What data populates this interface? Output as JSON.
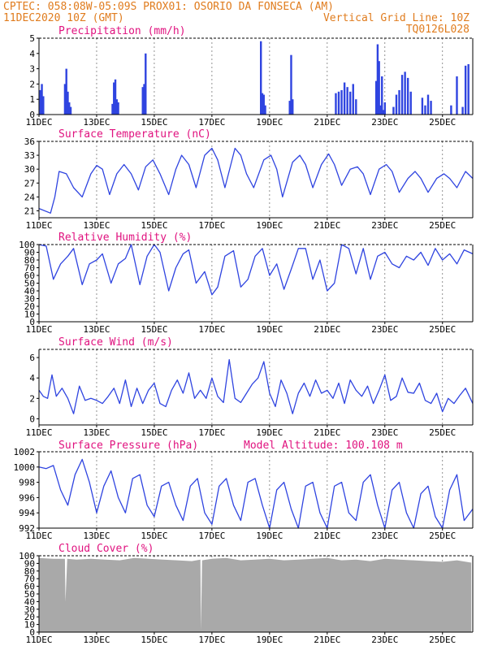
{
  "header": {
    "line1": "CPTEC:  058:08W-05:09S  PROX01: OSORIO DA FONSECA (AM)",
    "line2_left": "11DEC2020 10Z (GMT)",
    "line2_right": "Vertical Grid Line: 10Z",
    "line3_right": "TQ0126L028"
  },
  "x_axis": {
    "labels": [
      "11DEC",
      "13DEC",
      "15DEC",
      "17DEC",
      "19DEC",
      "21DEC",
      "23DEC",
      "25DEC"
    ],
    "start_day": 11,
    "end_day": 26.05
  },
  "colors": {
    "line": "#2f44e0",
    "bar": "#2f44e0",
    "cloud": "#a9a9a9",
    "title": "#e0127f",
    "header": "#e07c1e"
  },
  "chart_data": [
    {
      "type": "bar",
      "title": "Precipitation (mm/h)",
      "ylim": [
        0,
        5
      ],
      "yticks": [
        0,
        1,
        2,
        3,
        4,
        5
      ],
      "x": [
        11.05,
        11.1,
        11.15,
        11.9,
        11.95,
        12.0,
        12.05,
        12.1,
        13.55,
        13.6,
        13.65,
        13.7,
        13.75,
        14.6,
        14.65,
        14.7,
        18.7,
        18.75,
        18.8,
        18.85,
        19.7,
        19.75,
        19.8,
        21.3,
        21.4,
        21.5,
        21.6,
        21.7,
        21.8,
        21.9,
        22.0,
        22.7,
        22.75,
        22.8,
        22.85,
        22.9,
        22.95,
        23.0,
        23.3,
        23.4,
        23.5,
        23.6,
        23.7,
        23.8,
        23.9,
        24.3,
        24.4,
        24.5,
        24.6,
        25.3,
        25.5,
        25.7,
        25.8,
        25.9
      ],
      "values": [
        1.6,
        2.0,
        1.2,
        2.0,
        3.0,
        1.5,
        0.8,
        0.5,
        0.7,
        2.1,
        2.3,
        1.0,
        0.8,
        1.8,
        2.0,
        4.0,
        4.8,
        1.4,
        1.3,
        0.6,
        0.9,
        3.9,
        1.0,
        1.4,
        1.5,
        1.6,
        2.1,
        1.8,
        1.5,
        2.0,
        1.0,
        2.2,
        4.6,
        3.5,
        0.6,
        2.5,
        0.3,
        0.8,
        0.5,
        1.3,
        1.6,
        2.6,
        2.8,
        2.4,
        1.5,
        1.1,
        0.6,
        1.3,
        0.9,
        0.6,
        2.5,
        0.5,
        3.2,
        3.3
      ]
    },
    {
      "type": "line",
      "title": "Surface Temperature (nC)",
      "ylim": [
        19.5,
        36
      ],
      "yticks": [
        21,
        24,
        27,
        30,
        33,
        36
      ],
      "x": [
        11.0,
        11.4,
        11.55,
        11.7,
        11.95,
        12.2,
        12.5,
        12.8,
        13.0,
        13.2,
        13.45,
        13.7,
        13.95,
        14.2,
        14.45,
        14.7,
        14.95,
        15.2,
        15.5,
        15.75,
        15.95,
        16.2,
        16.45,
        16.75,
        17.0,
        17.2,
        17.45,
        17.8,
        18.0,
        18.2,
        18.45,
        18.8,
        19.05,
        19.25,
        19.45,
        19.8,
        20.05,
        20.25,
        20.5,
        20.8,
        21.05,
        21.25,
        21.5,
        21.8,
        22.05,
        22.25,
        22.5,
        22.8,
        23.05,
        23.25,
        23.5,
        23.8,
        24.05,
        24.25,
        24.5,
        24.8,
        25.05,
        25.25,
        25.5,
        25.8,
        26.05
      ],
      "values": [
        21.5,
        20.5,
        24,
        29.5,
        29,
        26,
        24,
        29,
        30.8,
        30,
        24.5,
        29,
        31,
        29,
        25.5,
        30.5,
        32,
        29,
        24.5,
        30,
        33,
        31,
        26,
        33,
        34.5,
        32,
        26,
        34.5,
        33,
        29,
        26,
        32,
        33,
        30,
        24,
        31.5,
        33,
        31,
        26,
        31,
        33.3,
        31,
        26.5,
        30,
        30.5,
        29,
        24.5,
        30,
        31,
        29.5,
        25,
        28,
        29.5,
        28,
        25,
        28,
        29,
        28,
        26,
        29.5,
        28
      ]
    },
    {
      "type": "line",
      "title": "Relative Humidity (%)",
      "ylim": [
        0,
        100
      ],
      "yticks": [
        0,
        10,
        20,
        30,
        40,
        50,
        60,
        70,
        80,
        90,
        100
      ],
      "x": [
        11.0,
        11.25,
        11.5,
        11.75,
        12.0,
        12.2,
        12.5,
        12.75,
        13.0,
        13.2,
        13.5,
        13.75,
        14.0,
        14.2,
        14.5,
        14.75,
        15.0,
        15.2,
        15.5,
        15.75,
        16.0,
        16.2,
        16.45,
        16.75,
        17.0,
        17.2,
        17.45,
        17.75,
        18.0,
        18.25,
        18.5,
        18.75,
        19.0,
        19.25,
        19.5,
        19.75,
        20.0,
        20.25,
        20.5,
        20.75,
        21.0,
        21.25,
        21.5,
        21.75,
        22.0,
        22.25,
        22.5,
        22.75,
        23.0,
        23.25,
        23.5,
        23.75,
        24.0,
        24.25,
        24.5,
        24.75,
        25.0,
        25.25,
        25.5,
        25.75,
        26.05
      ],
      "values": [
        100,
        98,
        55,
        75,
        85,
        95,
        48,
        75,
        80,
        88,
        50,
        75,
        82,
        100,
        48,
        85,
        100,
        90,
        40,
        70,
        88,
        93,
        50,
        65,
        35,
        45,
        85,
        92,
        45,
        55,
        85,
        95,
        60,
        75,
        42,
        68,
        95,
        95,
        55,
        80,
        40,
        50,
        100,
        95,
        62,
        95,
        55,
        85,
        90,
        75,
        70,
        85,
        80,
        90,
        73,
        95,
        80,
        88,
        75,
        93,
        88
      ]
    },
    {
      "type": "line",
      "title": "Surface Wind (m/s)",
      "ylim": [
        -0.6,
        6.8
      ],
      "yticks": [
        0,
        2,
        4,
        6
      ],
      "x": [
        11.0,
        11.15,
        11.3,
        11.45,
        11.6,
        11.8,
        12.0,
        12.2,
        12.4,
        12.6,
        12.8,
        13.0,
        13.2,
        13.4,
        13.6,
        13.8,
        14.0,
        14.2,
        14.4,
        14.6,
        14.8,
        15.0,
        15.2,
        15.4,
        15.6,
        15.8,
        16.0,
        16.2,
        16.4,
        16.6,
        16.8,
        17.0,
        17.2,
        17.4,
        17.6,
        17.8,
        18.0,
        18.2,
        18.4,
        18.6,
        18.8,
        19.0,
        19.2,
        19.4,
        19.6,
        19.8,
        20.0,
        20.2,
        20.4,
        20.6,
        20.8,
        21.0,
        21.2,
        21.4,
        21.6,
        21.8,
        22.0,
        22.2,
        22.4,
        22.6,
        22.8,
        23.0,
        23.2,
        23.4,
        23.6,
        23.8,
        24.0,
        24.2,
        24.4,
        24.6,
        24.8,
        25.0,
        25.2,
        25.4,
        25.6,
        25.8,
        26.05
      ],
      "values": [
        2.8,
        2.2,
        2.0,
        4.3,
        2.2,
        3.0,
        2.0,
        0.5,
        3.2,
        1.8,
        2.0,
        1.8,
        1.5,
        2.2,
        3.0,
        1.5,
        3.8,
        1.2,
        3.0,
        1.5,
        2.8,
        3.5,
        1.5,
        1.2,
        2.8,
        3.8,
        2.5,
        4.5,
        2.0,
        2.8,
        2.0,
        4.0,
        2.2,
        1.6,
        5.8,
        2.0,
        1.6,
        2.5,
        3.4,
        4.0,
        5.6,
        2.5,
        1.2,
        3.8,
        2.5,
        0.5,
        2.5,
        3.5,
        2.2,
        3.8,
        2.5,
        2.8,
        2.0,
        3.5,
        1.5,
        3.8,
        2.8,
        2.2,
        3.2,
        1.5,
        2.8,
        4.3,
        1.8,
        2.2,
        4.0,
        2.6,
        2.5,
        3.5,
        1.8,
        1.5,
        2.5,
        0.7,
        2.0,
        1.5,
        2.3,
        3.0,
        1.5
      ]
    },
    {
      "type": "line",
      "title": "Surface Pressure (hPa)",
      "annotation": "Model Altitude: 100.108  m",
      "ylim": [
        992,
        1002
      ],
      "yticks": [
        992,
        994,
        996,
        998,
        1000,
        1002
      ],
      "x": [
        11.0,
        11.25,
        11.5,
        11.75,
        12.0,
        12.25,
        12.5,
        12.75,
        13.0,
        13.25,
        13.5,
        13.75,
        14.0,
        14.25,
        14.5,
        14.75,
        15.0,
        15.25,
        15.5,
        15.75,
        16.0,
        16.25,
        16.5,
        16.75,
        17.0,
        17.25,
        17.5,
        17.75,
        18.0,
        18.25,
        18.5,
        18.75,
        19.0,
        19.25,
        19.5,
        19.75,
        20.0,
        20.25,
        20.5,
        20.75,
        21.0,
        21.25,
        21.5,
        21.75,
        22.0,
        22.25,
        22.5,
        22.75,
        23.0,
        23.25,
        23.5,
        23.75,
        24.0,
        24.25,
        24.5,
        24.75,
        25.0,
        25.25,
        25.5,
        25.75,
        26.05
      ],
      "values": [
        1000,
        999.8,
        1000.2,
        997,
        995,
        999,
        1001,
        998,
        994,
        997.5,
        999.5,
        996,
        994,
        998.5,
        999,
        995,
        993.5,
        997.5,
        998,
        995,
        993,
        997.5,
        998.5,
        994,
        992.5,
        997.5,
        998.5,
        995,
        993,
        998,
        998.5,
        995,
        991.5,
        997,
        998,
        994.5,
        992,
        997.5,
        998,
        994,
        992,
        997.5,
        998,
        994,
        993,
        998,
        999,
        995,
        992,
        997,
        998,
        994,
        992,
        996.5,
        997.5,
        993.5,
        992,
        997,
        999,
        993,
        994.5
      ]
    },
    {
      "type": "area",
      "title": "Cloud Cover (%)",
      "ylim": [
        0,
        100
      ],
      "yticks": [
        0,
        10,
        20,
        30,
        40,
        50,
        60,
        70,
        80,
        90,
        100
      ],
      "x": [
        11.0,
        11.5,
        11.9,
        11.92,
        11.98,
        12.3,
        12.8,
        13.3,
        13.8,
        14.3,
        14.8,
        15.3,
        15.8,
        16.3,
        16.6,
        16.62,
        16.66,
        17.0,
        17.5,
        18.0,
        18.5,
        19.0,
        19.5,
        20.0,
        20.5,
        21.0,
        21.5,
        22.0,
        22.5,
        23.0,
        23.5,
        24.0,
        24.5,
        25.0,
        25.5,
        26.0
      ],
      "values": [
        97,
        96,
        96,
        40,
        96,
        95,
        96,
        95,
        94,
        97,
        96,
        95,
        94,
        93,
        95,
        2,
        94,
        96,
        97,
        94,
        95,
        96,
        94,
        95,
        96,
        97,
        94,
        95,
        93,
        96,
        95,
        94,
        93,
        92,
        94,
        91
      ]
    }
  ]
}
